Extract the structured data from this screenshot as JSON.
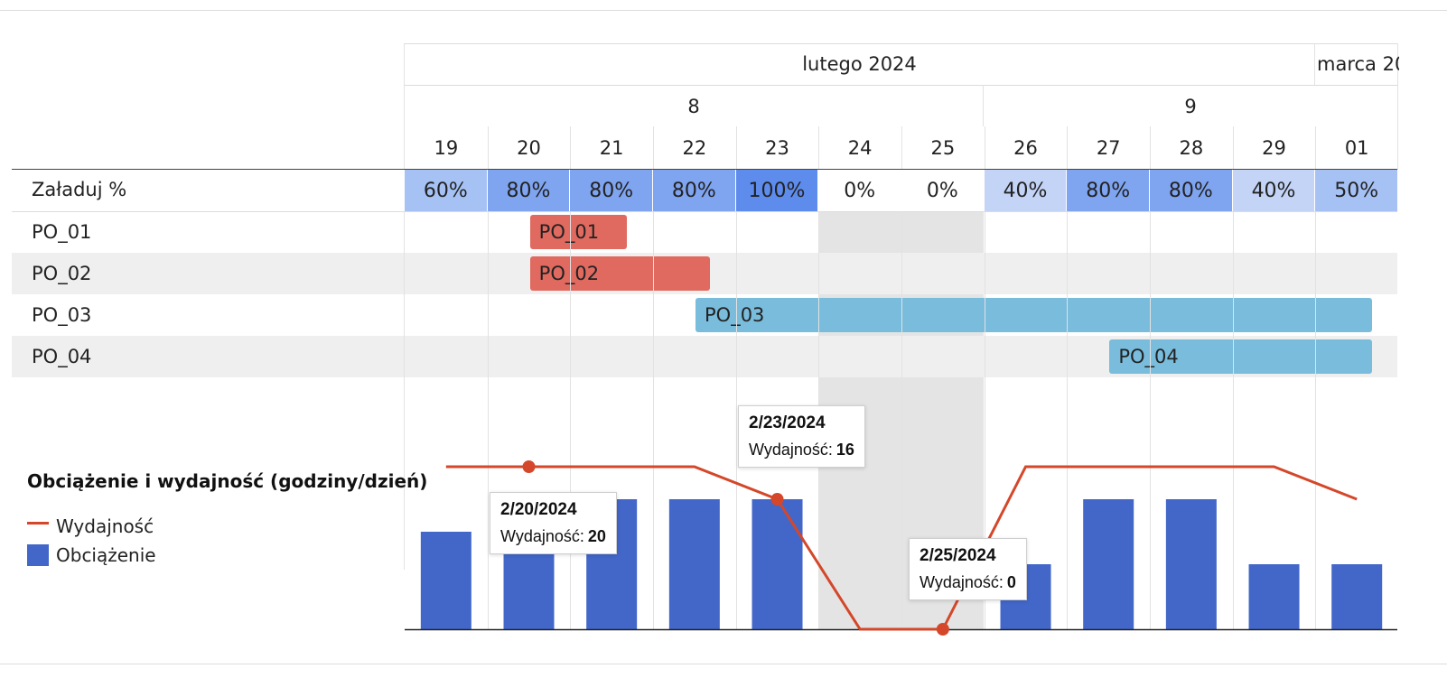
{
  "header": {
    "months": [
      {
        "label": "lutego 2024"
      },
      {
        "label": "marca 20"
      }
    ],
    "weeks": [
      {
        "label": "8"
      },
      {
        "label": "9"
      }
    ],
    "days": [
      "19",
      "20",
      "21",
      "22",
      "23",
      "24",
      "25",
      "26",
      "27",
      "28",
      "29",
      "01"
    ]
  },
  "load_row": {
    "label": "Załaduj %",
    "values": [
      "60%",
      "80%",
      "80%",
      "80%",
      "100%",
      "0%",
      "0%",
      "40%",
      "80%",
      "80%",
      "40%",
      "50%"
    ]
  },
  "rows": [
    {
      "label": "PO_01",
      "bar_label": "PO_01",
      "start_day": "20",
      "end_day": "21",
      "color": "#e06a60"
    },
    {
      "label": "PO_02",
      "bar_label": "PO_02",
      "start_day": "20",
      "end_day": "22",
      "color": "#e06a60"
    },
    {
      "label": "PO_03",
      "bar_label": "PO_03",
      "start_day": "22",
      "end_day": "01",
      "color": "#79bcdc"
    },
    {
      "label": "PO_04",
      "bar_label": "PO_04",
      "start_day": "27",
      "end_day": "01",
      "color": "#79bcdc"
    }
  ],
  "colors": {
    "load_scale": [
      "#a6c2f5",
      "#7fa4f0",
      "#5e8cec"
    ],
    "weekend_shade": "#e4e4e4",
    "stripe": "#efefef",
    "capacity_line": "#d4472a",
    "load_bar": "#4267c9"
  },
  "chart_data": {
    "type": "bar+line",
    "title": "Obciążenie i wydajność (godziny/dzień)",
    "categories": [
      "2/19/2024",
      "2/20/2024",
      "2/21/2024",
      "2/22/2024",
      "2/23/2024",
      "2/24/2024",
      "2/25/2024",
      "2/26/2024",
      "2/27/2024",
      "2/28/2024",
      "2/29/2024",
      "3/1/2024"
    ],
    "series": [
      {
        "name": "Wydajność",
        "kind": "line",
        "values": [
          20,
          20,
          20,
          20,
          16,
          0,
          0,
          20,
          20,
          20,
          20,
          16
        ]
      },
      {
        "name": "Obciążenie",
        "kind": "bar",
        "values": [
          12,
          16,
          16,
          16,
          16,
          0,
          0,
          8,
          16,
          16,
          8,
          8
        ]
      }
    ],
    "ylim": [
      0,
      20
    ],
    "legend": [
      {
        "name": "Wydajność",
        "icon": "line"
      },
      {
        "name": "Obciążenie",
        "icon": "square"
      }
    ],
    "tooltips": [
      {
        "date": "2/20/2024",
        "label": "Wydajność:",
        "value": "20"
      },
      {
        "date": "2/23/2024",
        "label": "Wydajność:",
        "value": "16"
      },
      {
        "date": "2/25/2024",
        "label": "Wydajność:",
        "value": "0"
      }
    ]
  }
}
